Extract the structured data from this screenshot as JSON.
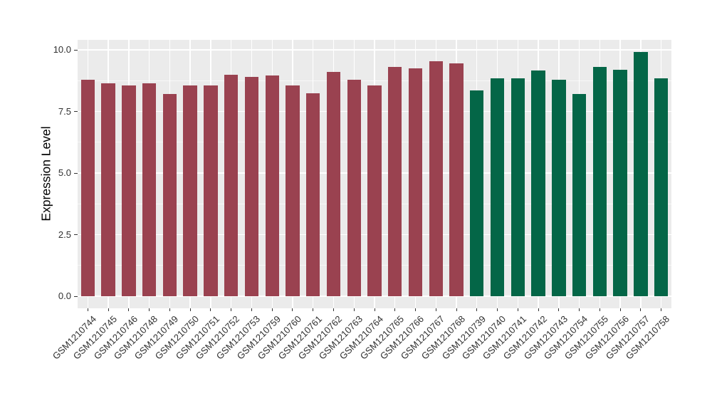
{
  "chart_data": {
    "type": "bar",
    "title": "",
    "xlabel": "",
    "ylabel": "Expression Level",
    "ylim": [
      0,
      10.4
    ],
    "ytick_values": [
      0,
      2.5,
      5,
      7.5,
      10
    ],
    "ytick_labels": [
      "0.0",
      "2.5",
      "5.0",
      "7.5",
      "10.0"
    ],
    "minor_yticks": [
      1.25,
      3.75,
      6.25,
      8.75
    ],
    "grid": "gray-panel-with-white-gridlines",
    "legend_position": "none",
    "categories": [
      "GSM1210744",
      "GSM1210745",
      "GSM1210746",
      "GSM1210748",
      "GSM1210749",
      "GSM1210750",
      "GSM1210751",
      "GSM1210752",
      "GSM1210753",
      "GSM1210759",
      "GSM1210760",
      "GSM1210761",
      "GSM1210762",
      "GSM1210763",
      "GSM1210764",
      "GSM1210765",
      "GSM1210766",
      "GSM1210767",
      "GSM1210768",
      "GSM1210739",
      "GSM1210740",
      "GSM1210741",
      "GSM1210742",
      "GSM1210743",
      "GSM1210754",
      "GSM1210755",
      "GSM1210756",
      "GSM1210757",
      "GSM1210758"
    ],
    "values": [
      8.8,
      8.65,
      8.55,
      8.65,
      8.2,
      8.55,
      8.55,
      9.0,
      8.9,
      8.95,
      8.55,
      8.25,
      9.1,
      8.8,
      8.55,
      9.3,
      9.25,
      9.55,
      9.45,
      8.35,
      8.85,
      8.85,
      9.15,
      8.8,
      8.2,
      9.3,
      9.2,
      9.9,
      8.85
    ],
    "groups": [
      "maroon",
      "maroon",
      "maroon",
      "maroon",
      "maroon",
      "maroon",
      "maroon",
      "maroon",
      "maroon",
      "maroon",
      "maroon",
      "maroon",
      "maroon",
      "maroon",
      "maroon",
      "maroon",
      "maroon",
      "maroon",
      "maroon",
      "green",
      "green",
      "green",
      "green",
      "green",
      "green",
      "green",
      "green",
      "green",
      "green"
    ],
    "palette": {
      "maroon": "#9A4250",
      "green": "#046647"
    },
    "panel_background": "#EBEBEB",
    "gridline_color": "#FFFFFF",
    "axis_text_color": "#303030"
  }
}
